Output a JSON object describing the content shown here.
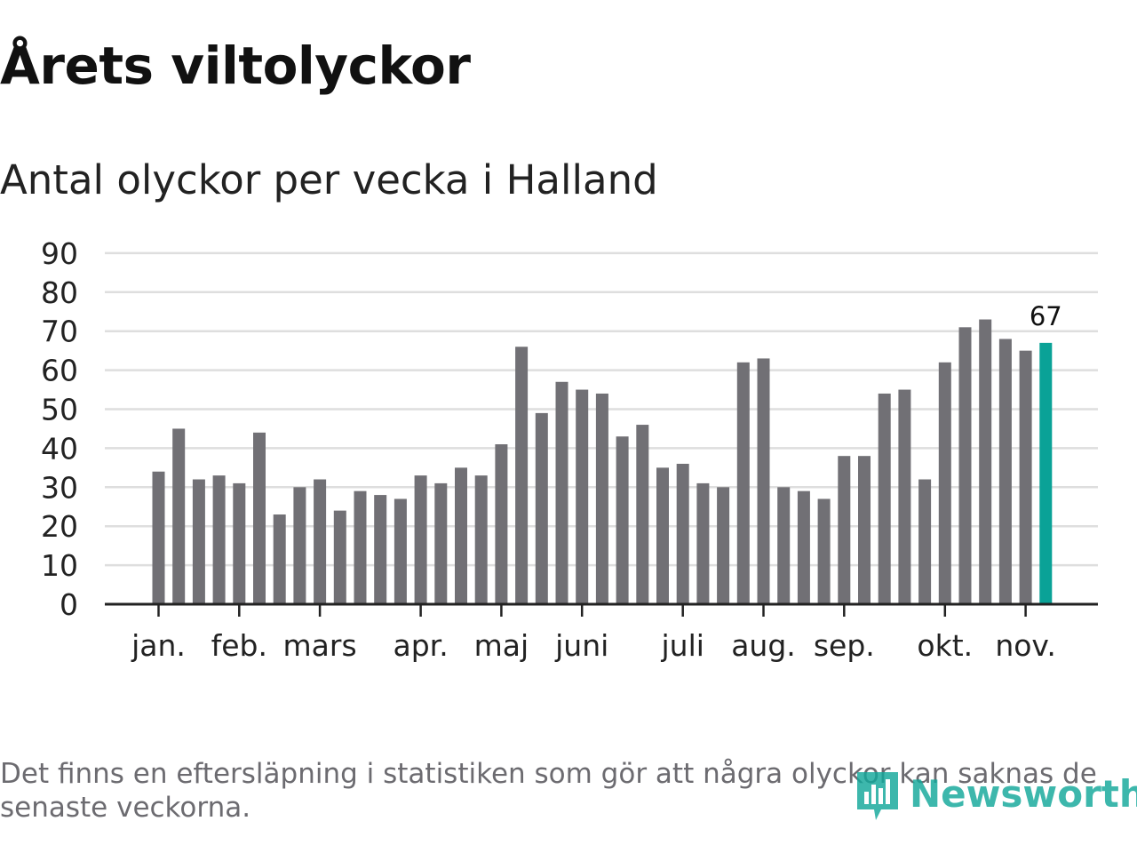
{
  "title": "Årets viltolyckor",
  "subtitle": "Antal olyckor per vecka i Halland",
  "footnote": "Det finns en eftersläpning i statistiken som gör att några olyckor kan saknas de senaste veckorna.",
  "brand": {
    "name": "Newsworthy",
    "color": "#13a89b",
    "icon": "newsworthy-logo-icon"
  },
  "colors": {
    "bar": "#717075",
    "highlight": "#0aa297",
    "grid": "#dedede",
    "axis": "#222222",
    "text": "#222222"
  },
  "chart_data": {
    "type": "bar",
    "title": "Årets viltolyckor",
    "subtitle": "Antal olyckor per vecka i Halland",
    "xlabel": "",
    "ylabel": "",
    "ylim": [
      0,
      90
    ],
    "yticks": [
      0,
      10,
      20,
      30,
      40,
      50,
      60,
      70,
      80,
      90
    ],
    "grid": true,
    "values": [
      34,
      45,
      32,
      33,
      31,
      44,
      23,
      30,
      32,
      24,
      29,
      28,
      27,
      33,
      31,
      35,
      33,
      41,
      66,
      49,
      57,
      55,
      54,
      43,
      46,
      35,
      36,
      31,
      30,
      62,
      63,
      30,
      29,
      27,
      38,
      38,
      54,
      55,
      32,
      62,
      71,
      73,
      68,
      65,
      67
    ],
    "highlight_index": 44,
    "highlight_label": "67",
    "month_ticks": [
      {
        "label": "jan.",
        "bar": 0
      },
      {
        "label": "feb.",
        "bar": 4
      },
      {
        "label": "mars",
        "bar": 8
      },
      {
        "label": "apr.",
        "bar": 13
      },
      {
        "label": "maj",
        "bar": 17
      },
      {
        "label": "juni",
        "bar": 21
      },
      {
        "label": "juli",
        "bar": 26
      },
      {
        "label": "aug.",
        "bar": 30
      },
      {
        "label": "sep.",
        "bar": 34
      },
      {
        "label": "okt.",
        "bar": 39
      },
      {
        "label": "nov.",
        "bar": 43
      }
    ]
  }
}
